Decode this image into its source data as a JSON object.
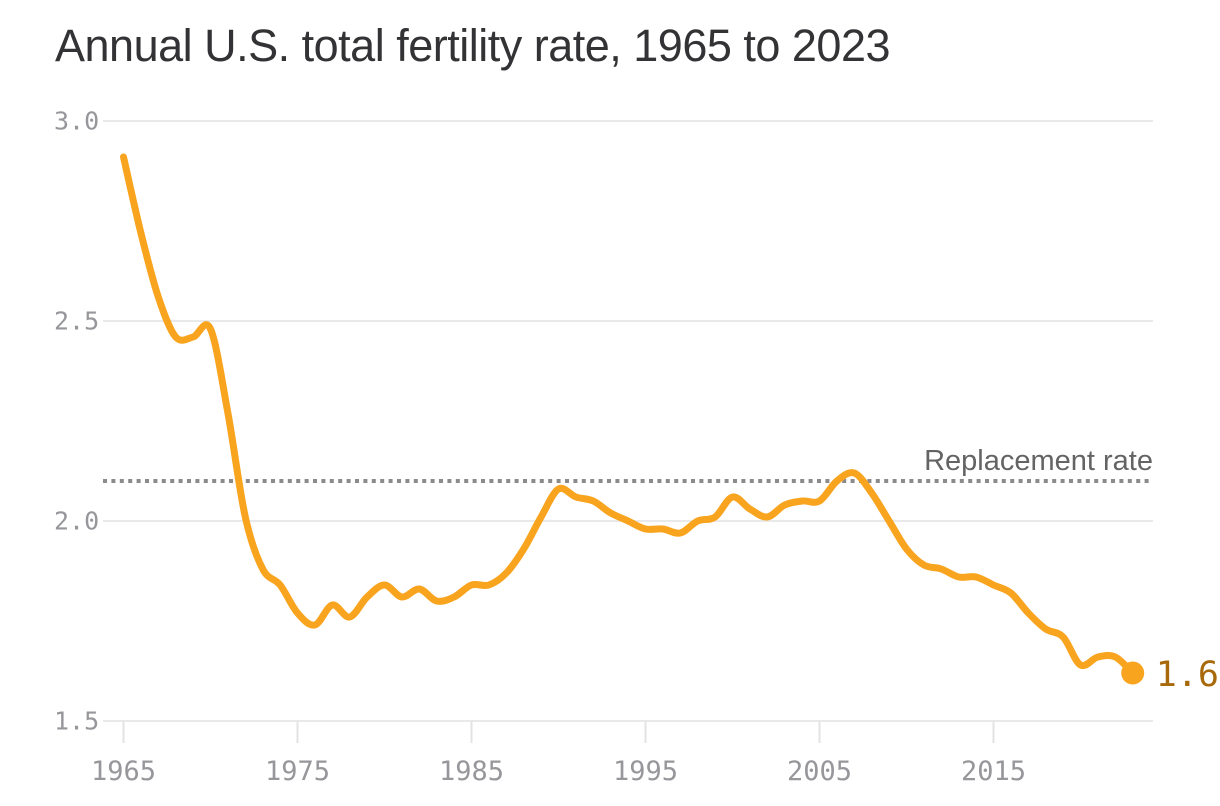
{
  "header": {
    "title": "Annual U.S. total fertility rate, 1965 to 2023"
  },
  "colors": {
    "title_text": "#333336",
    "series_line": "#F9A41F",
    "end_dot": "#F9A41F",
    "end_value_text": "#A8690A",
    "grid_line": "#E9E9E9",
    "tick_mark": "#E3E3E3",
    "axis_label_text": "#97979B",
    "reference_line": "#8B8B8B",
    "reference_label_text": "#646464",
    "background": "#FFFFFF"
  },
  "chart_data": {
    "type": "line",
    "title": "Annual U.S. total fertility rate, 1965 to 2023",
    "xlabel": "",
    "ylabel": "",
    "xlim": [
      1964,
      2024.5
    ],
    "ylim": [
      1.5,
      3.0
    ],
    "grid": true,
    "legend": false,
    "x": [
      1965,
      1966,
      1967,
      1968,
      1969,
      1970,
      1971,
      1972,
      1973,
      1974,
      1975,
      1976,
      1977,
      1978,
      1979,
      1980,
      1981,
      1982,
      1983,
      1984,
      1985,
      1986,
      1987,
      1988,
      1989,
      1990,
      1991,
      1992,
      1993,
      1994,
      1995,
      1996,
      1997,
      1998,
      1999,
      2000,
      2001,
      2002,
      2003,
      2004,
      2005,
      2006,
      2007,
      2008,
      2009,
      2010,
      2011,
      2012,
      2013,
      2014,
      2015,
      2016,
      2017,
      2018,
      2019,
      2020,
      2021,
      2022,
      2023
    ],
    "series": [
      {
        "name": "Total fertility rate",
        "values": [
          2.91,
          2.72,
          2.56,
          2.46,
          2.46,
          2.48,
          2.27,
          2.01,
          1.88,
          1.84,
          1.77,
          1.74,
          1.79,
          1.76,
          1.81,
          1.84,
          1.81,
          1.83,
          1.8,
          1.81,
          1.84,
          1.84,
          1.87,
          1.93,
          2.01,
          2.08,
          2.06,
          2.05,
          2.02,
          2.0,
          1.98,
          1.98,
          1.97,
          2.0,
          2.01,
          2.06,
          2.03,
          2.01,
          2.04,
          2.05,
          2.05,
          2.1,
          2.12,
          2.07,
          2.0,
          1.93,
          1.89,
          1.88,
          1.86,
          1.86,
          1.84,
          1.82,
          1.77,
          1.73,
          1.71,
          1.64,
          1.66,
          1.66,
          1.62
        ]
      }
    ],
    "y_ticks": [
      {
        "value": 3.0,
        "label": "3.0"
      },
      {
        "value": 2.5,
        "label": "2.5"
      },
      {
        "value": 2.0,
        "label": "2.0"
      },
      {
        "value": 1.5,
        "label": "1.5"
      }
    ],
    "x_ticks": [
      {
        "value": 1965,
        "label": "1965"
      },
      {
        "value": 1975,
        "label": "1975"
      },
      {
        "value": 1985,
        "label": "1985"
      },
      {
        "value": 1995,
        "label": "1995"
      },
      {
        "value": 2005,
        "label": "2005"
      },
      {
        "value": 2015,
        "label": "2015"
      }
    ],
    "reference_line": {
      "value": 2.1,
      "label": "Replacement rate"
    },
    "end_label": "1.62"
  }
}
